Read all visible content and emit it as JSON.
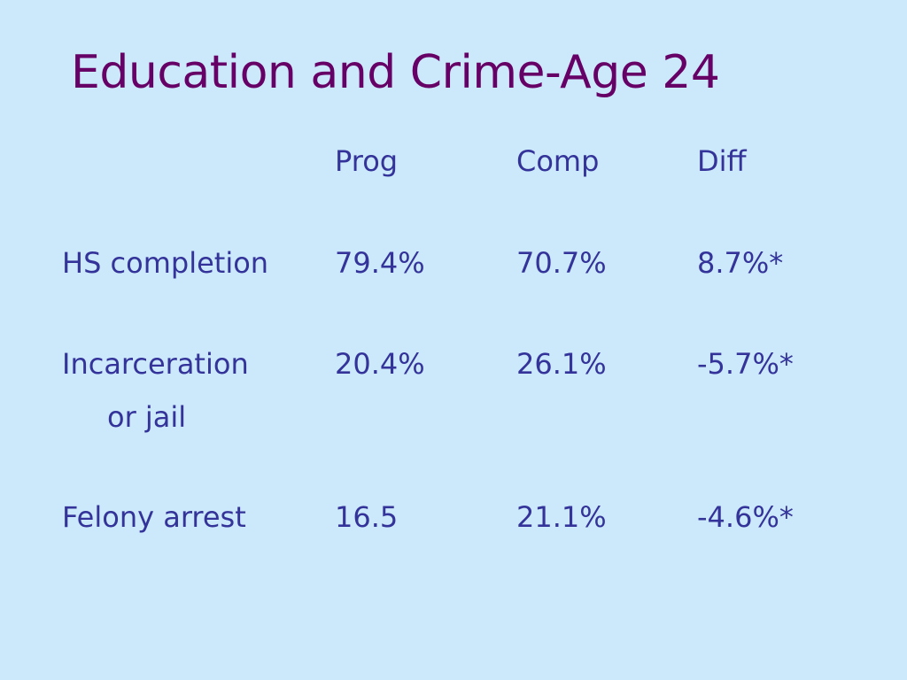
{
  "slide": {
    "title": "Education and Crime-Age 24",
    "header": {
      "prog": "Prog",
      "comp": "Comp",
      "diff": "Diff"
    },
    "rows": [
      {
        "label": "HS completion",
        "label_cont": "",
        "prog": "79.4%",
        "comp": "70.7%",
        "diff": "8.7%*"
      },
      {
        "label": "Incarceration",
        "label_cont": "or jail",
        "prog": "20.4%",
        "comp": "26.1%",
        "diff": "-5.7%*"
      },
      {
        "label": "Felony arrest",
        "label_cont": "",
        "prog": "16.5",
        "comp": "21.1%",
        "diff": "-4.6%*"
      }
    ]
  },
  "colors": {
    "background": "#cce9fc",
    "title": "#660066",
    "body_text": "#333399"
  }
}
